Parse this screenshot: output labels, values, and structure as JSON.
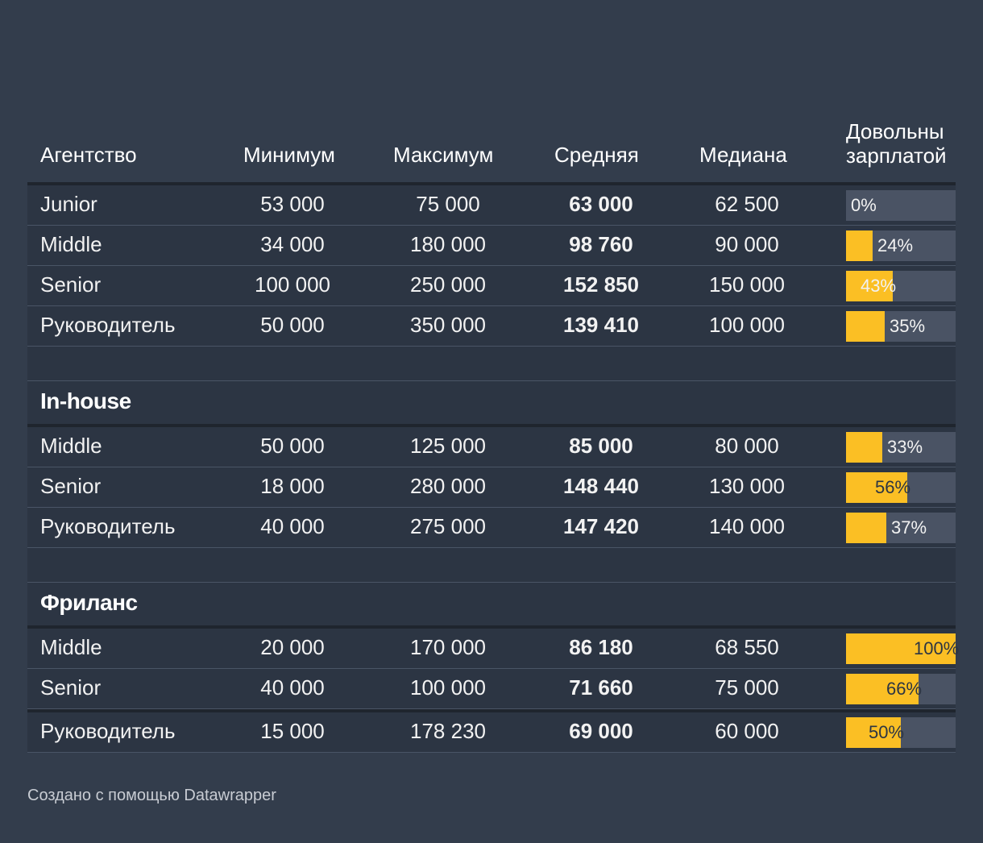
{
  "chart_data": {
    "type": "table",
    "columns": [
      "Агентство",
      "Минимум",
      "Максимум",
      "Средняя",
      "Медиана",
      "Довольны зарплатой"
    ],
    "header_lines_last": [
      "Довольны",
      "зарплатой"
    ],
    "bar_color": "#fbbf24",
    "groups": [
      {
        "title": "",
        "rows": [
          {
            "role": "Junior",
            "min": "53 000",
            "max": "75 000",
            "avg": "63 000",
            "median": "62 500",
            "satisfied": 0,
            "satisfied_label": "0%"
          },
          {
            "role": "Middle",
            "min": "34 000",
            "max": "180 000",
            "avg": "98 760",
            "median": "90 000",
            "satisfied": 24,
            "satisfied_label": "24%"
          },
          {
            "role": "Senior",
            "min": "100 000",
            "max": "250 000",
            "avg": "152 850",
            "median": "150 000",
            "satisfied": 43,
            "satisfied_label": "43%"
          },
          {
            "role": "Руководитель",
            "min": "50 000",
            "max": "350 000",
            "avg": "139 410",
            "median": "100 000",
            "satisfied": 35,
            "satisfied_label": "35%"
          }
        ]
      },
      {
        "title": "In-house",
        "rows": [
          {
            "role": "Middle",
            "min": "50 000",
            "max": "125 000",
            "avg": "85 000",
            "median": "80 000",
            "satisfied": 33,
            "satisfied_label": "33%"
          },
          {
            "role": "Senior",
            "min": "18 000",
            "max": "280 000",
            "avg": "148 440",
            "median": "130 000",
            "satisfied": 56,
            "satisfied_label": "56%"
          },
          {
            "role": "Руководитель",
            "min": "40 000",
            "max": "275 000",
            "avg": "147 420",
            "median": "140 000",
            "satisfied": 37,
            "satisfied_label": "37%"
          }
        ]
      },
      {
        "title": "Фриланс",
        "rows": [
          {
            "role": "Middle",
            "min": "20 000",
            "max": "170 000",
            "avg": "86 180",
            "median": "68 550",
            "satisfied": 100,
            "satisfied_label": "100%"
          },
          {
            "role": "Senior",
            "min": "40 000",
            "max": "100 000",
            "avg": "71 660",
            "median": "75 000",
            "satisfied": 66,
            "satisfied_label": "66%"
          },
          {
            "role": "Руководитель",
            "min": "15 000",
            "max": "178 230",
            "avg": "69 000",
            "median": "60 000",
            "satisfied": 50,
            "satisfied_label": "50%"
          }
        ]
      }
    ]
  },
  "footer": "Создано с помощью Datawrapper"
}
